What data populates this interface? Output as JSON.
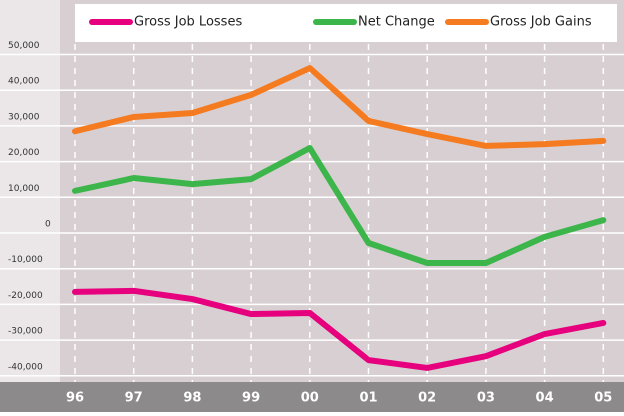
{
  "chart_data": {
    "type": "line",
    "categories": [
      "96",
      "97",
      "98",
      "99",
      "00",
      "01",
      "02",
      "03",
      "04",
      "05"
    ],
    "series": [
      {
        "name": "Gross Job Losses",
        "color": "#e6007e",
        "values": [
          -16500,
          -16200,
          -18500,
          -22700,
          -22400,
          -35600,
          -37800,
          -34500,
          -28300,
          -25200
        ]
      },
      {
        "name": "Net Change",
        "color": "#3cb54a",
        "values": [
          11800,
          15400,
          13700,
          15100,
          23800,
          -2800,
          -8400,
          -8400,
          -1100,
          3600
        ]
      },
      {
        "name": "Gross Job Gains",
        "color": "#f47b20",
        "values": [
          28500,
          32500,
          33600,
          38700,
          46200,
          31400,
          27700,
          24400,
          24900,
          25800
        ]
      }
    ],
    "ylim": [
      -41000,
      63000
    ],
    "yticks": [
      {
        "value": -40000,
        "label": "-40,000"
      },
      {
        "value": -30000,
        "label": "-30,000"
      },
      {
        "value": -20000,
        "label": "-20,000"
      },
      {
        "value": -10000,
        "label": "-10,000"
      },
      0,
      {
        "value": 10000,
        "label": "10,000"
      },
      {
        "value": 20000,
        "label": "20,000"
      },
      {
        "value": 30000,
        "label": "30,000"
      },
      {
        "value": 40000,
        "label": "40,000"
      },
      {
        "value": 50000,
        "label": "50,000"
      }
    ],
    "grid": true,
    "legend": "top"
  }
}
